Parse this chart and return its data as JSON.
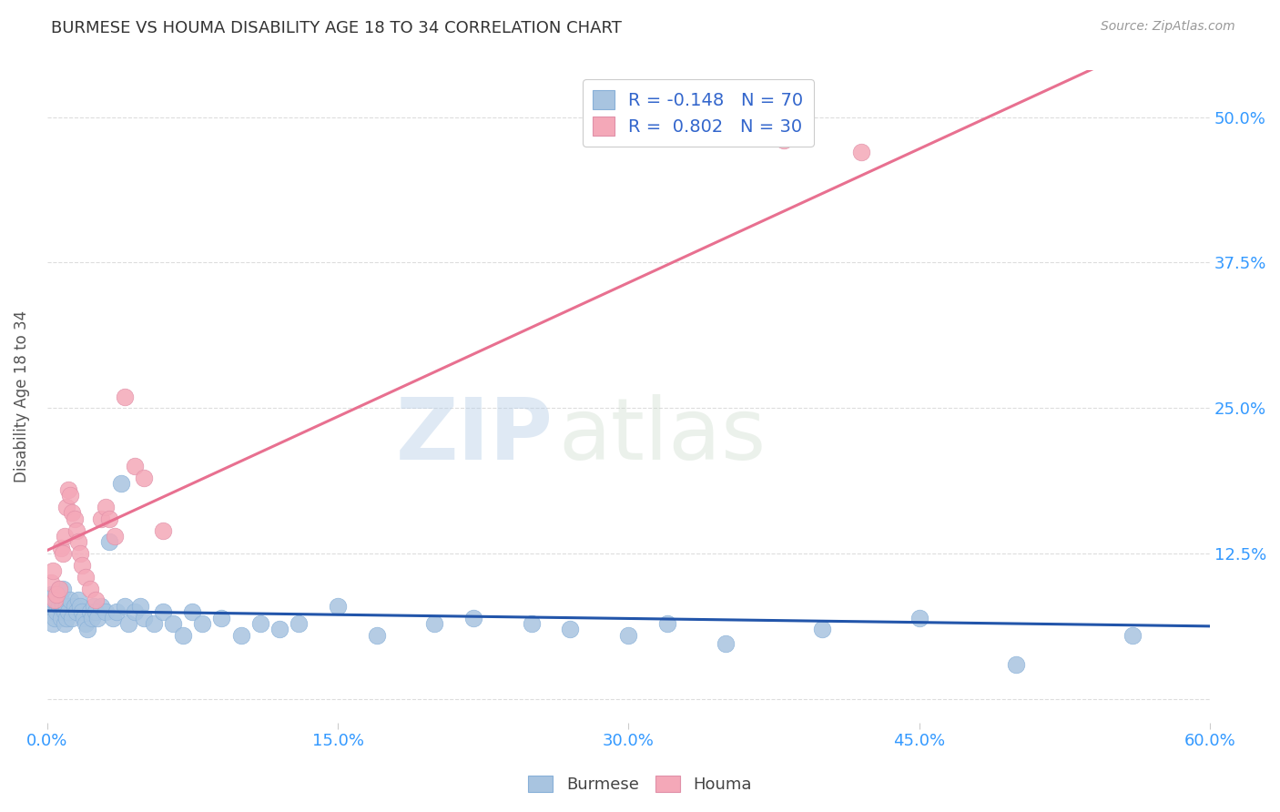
{
  "title": "BURMESE VS HOUMA DISABILITY AGE 18 TO 34 CORRELATION CHART",
  "source": "Source: ZipAtlas.com",
  "ylabel": "Disability Age 18 to 34",
  "xlim": [
    0.0,
    0.6
  ],
  "ylim": [
    -0.02,
    0.54
  ],
  "xticks": [
    0.0,
    0.15,
    0.3,
    0.45,
    0.6
  ],
  "yticks": [
    0.0,
    0.125,
    0.25,
    0.375,
    0.5
  ],
  "xticklabels": [
    "0.0%",
    "15.0%",
    "30.0%",
    "45.0%",
    "60.0%"
  ],
  "yticklabels": [
    "",
    "12.5%",
    "25.0%",
    "37.5%",
    "50.0%"
  ],
  "burmese_color": "#a8c4e0",
  "houma_color": "#f4a8b8",
  "burmese_line_color": "#2255aa",
  "houma_line_color": "#e87090",
  "legend_R_burmese": "R = -0.148",
  "legend_N_burmese": "N = 70",
  "legend_R_houma": "R =  0.802",
  "legend_N_houma": "N = 30",
  "watermark_zip": "ZIP",
  "watermark_atlas": "atlas",
  "burmese_x": [
    0.001,
    0.002,
    0.002,
    0.003,
    0.003,
    0.004,
    0.004,
    0.005,
    0.005,
    0.006,
    0.006,
    0.007,
    0.007,
    0.008,
    0.008,
    0.009,
    0.009,
    0.01,
    0.01,
    0.011,
    0.012,
    0.013,
    0.014,
    0.015,
    0.016,
    0.017,
    0.018,
    0.019,
    0.02,
    0.021,
    0.022,
    0.023,
    0.024,
    0.025,
    0.026,
    0.028,
    0.03,
    0.032,
    0.034,
    0.036,
    0.038,
    0.04,
    0.042,
    0.045,
    0.048,
    0.05,
    0.055,
    0.06,
    0.065,
    0.07,
    0.075,
    0.08,
    0.09,
    0.1,
    0.11,
    0.12,
    0.13,
    0.15,
    0.17,
    0.2,
    0.22,
    0.25,
    0.27,
    0.3,
    0.32,
    0.35,
    0.4,
    0.45,
    0.5,
    0.56
  ],
  "burmese_y": [
    0.075,
    0.08,
    0.09,
    0.065,
    0.085,
    0.07,
    0.09,
    0.075,
    0.085,
    0.08,
    0.095,
    0.07,
    0.085,
    0.08,
    0.095,
    0.075,
    0.065,
    0.08,
    0.07,
    0.075,
    0.085,
    0.07,
    0.08,
    0.075,
    0.085,
    0.08,
    0.075,
    0.07,
    0.065,
    0.06,
    0.075,
    0.07,
    0.08,
    0.075,
    0.07,
    0.08,
    0.075,
    0.135,
    0.07,
    0.075,
    0.185,
    0.08,
    0.065,
    0.075,
    0.08,
    0.07,
    0.065,
    0.075,
    0.065,
    0.055,
    0.075,
    0.065,
    0.07,
    0.055,
    0.065,
    0.06,
    0.065,
    0.08,
    0.055,
    0.065,
    0.07,
    0.065,
    0.06,
    0.055,
    0.065,
    0.048,
    0.06,
    0.07,
    0.03,
    0.055
  ],
  "houma_x": [
    0.002,
    0.003,
    0.004,
    0.005,
    0.006,
    0.007,
    0.008,
    0.009,
    0.01,
    0.011,
    0.012,
    0.013,
    0.014,
    0.015,
    0.016,
    0.017,
    0.018,
    0.02,
    0.022,
    0.025,
    0.028,
    0.03,
    0.032,
    0.035,
    0.04,
    0.045,
    0.05,
    0.06,
    0.38,
    0.42
  ],
  "houma_y": [
    0.1,
    0.11,
    0.085,
    0.09,
    0.095,
    0.13,
    0.125,
    0.14,
    0.165,
    0.18,
    0.175,
    0.16,
    0.155,
    0.145,
    0.135,
    0.125,
    0.115,
    0.105,
    0.095,
    0.085,
    0.155,
    0.165,
    0.155,
    0.14,
    0.26,
    0.2,
    0.19,
    0.145,
    0.48,
    0.47
  ],
  "background_color": "#ffffff",
  "grid_color": "#dddddd"
}
